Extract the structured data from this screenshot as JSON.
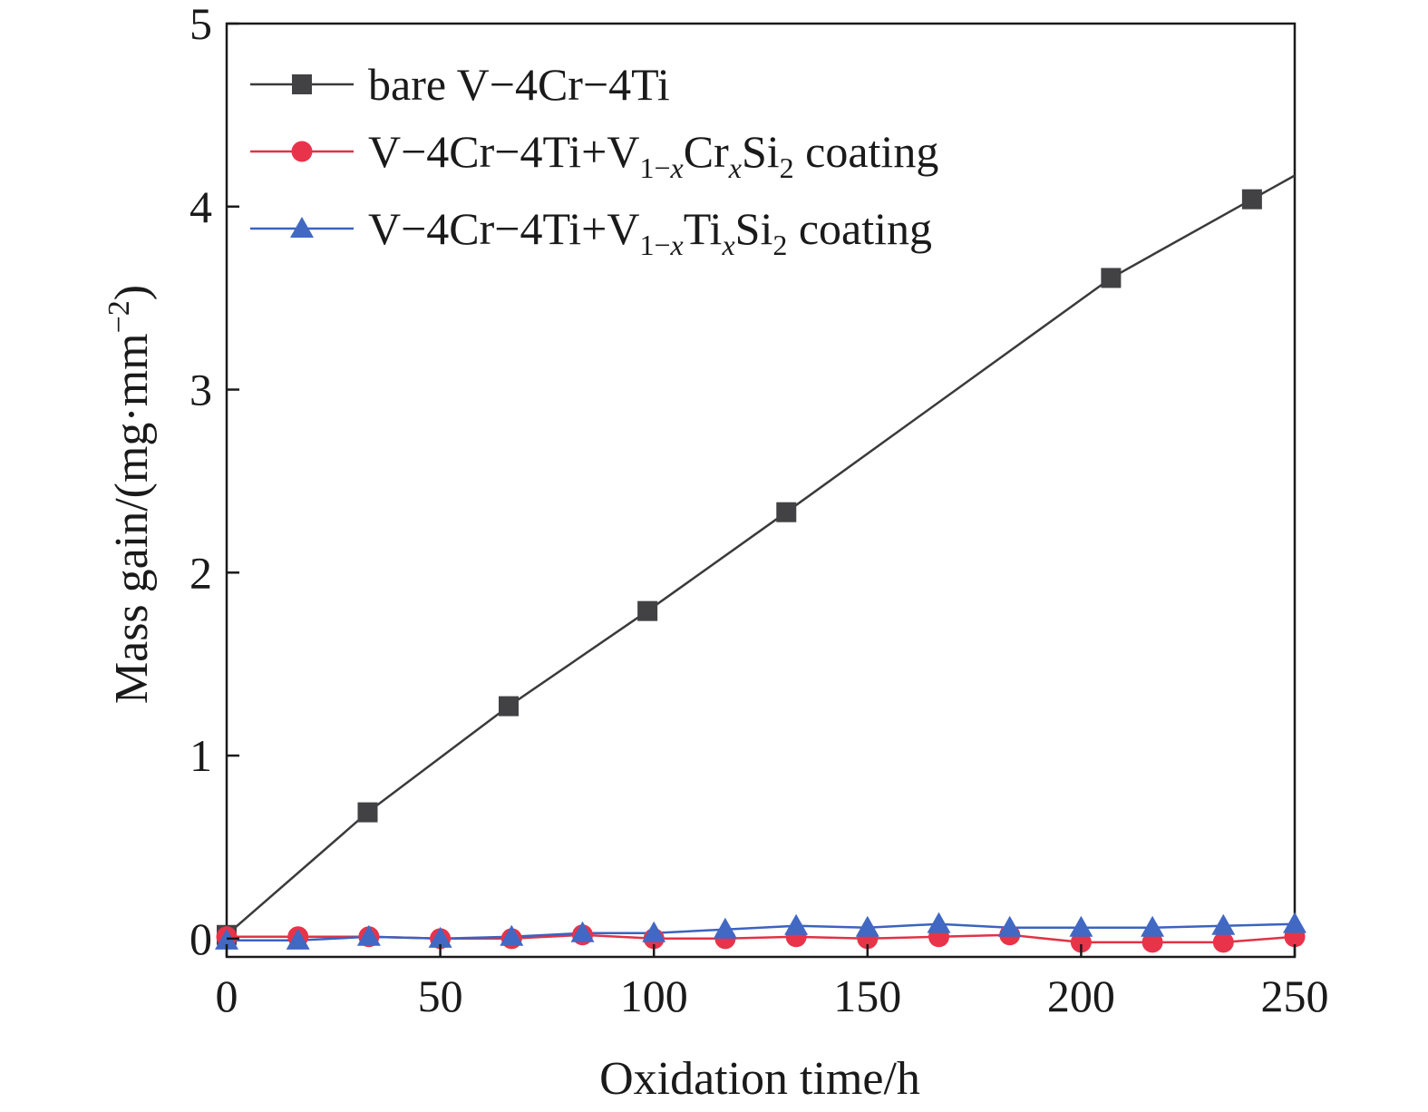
{
  "chart_data": {
    "type": "line",
    "xlabel": "Oxidation time/h",
    "ylabel": {
      "prefix": "Mass gain/(mg·mm",
      "sup": "−2",
      "suffix": ")"
    },
    "xlim": [
      0,
      250
    ],
    "ylim": [
      -0.1,
      5
    ],
    "xticks": [
      0,
      50,
      100,
      150,
      200,
      250
    ],
    "yticks": [
      0,
      1,
      2,
      3,
      4,
      5
    ],
    "grid": false,
    "legend_position": "top-left",
    "series": [
      {
        "name": "bare V−4Cr−4Ti",
        "label_parts": [
          {
            "t": "bare V−4Cr−4Ti",
            "s": "n"
          }
        ],
        "marker": "square",
        "color": "#424245",
        "line_color": "#3a3a3c",
        "x": [
          0,
          33,
          66,
          98.5,
          131,
          207,
          240,
          250
        ],
        "y": [
          0.02,
          0.69,
          1.27,
          1.79,
          2.33,
          3.61,
          4.04,
          4.17
        ],
        "marker_count": 7
      },
      {
        "name": "V−4Cr−4Ti+V1−xCrxSi2 coating",
        "label_parts": [
          {
            "t": "V−4Cr−4Ti+V",
            "s": "n"
          },
          {
            "t": "1−",
            "s": "sub"
          },
          {
            "t": "x",
            "s": "subi"
          },
          {
            "t": "Cr",
            "s": "n"
          },
          {
            "t": "x",
            "s": "subi"
          },
          {
            "t": "Si",
            "s": "n"
          },
          {
            "t": "2",
            "s": "sub"
          },
          {
            "t": " coating",
            "s": "n"
          }
        ],
        "marker": "circle",
        "color": "#e8334a",
        "line_color": "#e03346",
        "x": [
          0,
          16.7,
          33.3,
          50,
          66.7,
          83.3,
          100,
          116.7,
          133.3,
          150,
          166.7,
          183.3,
          200,
          216.7,
          233.3,
          250
        ],
        "y": [
          0.01,
          0.01,
          0.01,
          0.0,
          0.0,
          0.02,
          0.0,
          0.0,
          0.01,
          0.0,
          0.01,
          0.02,
          -0.02,
          -0.02,
          -0.02,
          0.01
        ],
        "marker_count": 16
      },
      {
        "name": "V−4Cr−4Ti+V1−xTixSi2 coating",
        "label_parts": [
          {
            "t": "V−4Cr−4Ti+V",
            "s": "n"
          },
          {
            "t": "1−",
            "s": "sub"
          },
          {
            "t": "x",
            "s": "subi"
          },
          {
            "t": "Ti",
            "s": "n"
          },
          {
            "t": "x",
            "s": "subi"
          },
          {
            "t": "Si",
            "s": "n"
          },
          {
            "t": "2",
            "s": "sub"
          },
          {
            "t": " coating",
            "s": "n"
          }
        ],
        "marker": "triangle",
        "color": "#4168c3",
        "line_color": "#3b63bf",
        "x": [
          0,
          16.7,
          33.3,
          50,
          66.7,
          83.3,
          100,
          116.7,
          133.3,
          150,
          166.7,
          183.3,
          200,
          216.7,
          233.3,
          250
        ],
        "y": [
          -0.01,
          -0.01,
          0.01,
          0.0,
          0.01,
          0.03,
          0.03,
          0.05,
          0.07,
          0.06,
          0.08,
          0.06,
          0.06,
          0.06,
          0.07,
          0.08
        ],
        "marker_count": 16
      }
    ]
  }
}
